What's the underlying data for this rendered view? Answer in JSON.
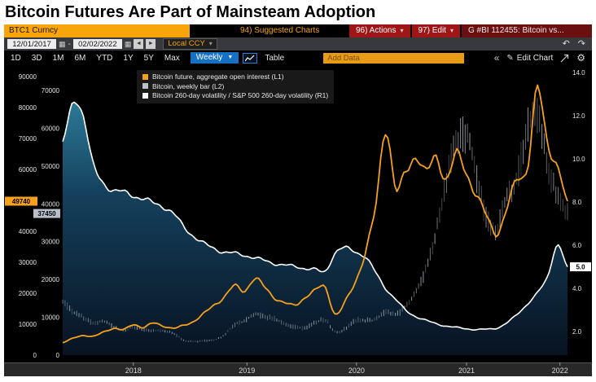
{
  "headline": "Bitcoin Futures Are Part of Mainsteam Adoption",
  "titlebar": {
    "ticker": "BTC1 Curncy",
    "suggested_charts": "94) Suggested Charts",
    "actions": "96) Actions",
    "edit": "97) Edit",
    "chart_title": "G #BI 112455: Bitcoin vs..."
  },
  "toolbar_dates": {
    "start_date": "12/01/2017",
    "end_date": "02/02/2022",
    "separator": "-",
    "currency_mode": "Local CCY"
  },
  "toolbar_chart": {
    "periods": [
      "1D",
      "3D",
      "1M",
      "6M",
      "YTD",
      "1Y",
      "5Y",
      "Max"
    ],
    "frequency": "Weekly",
    "table": "Table",
    "add_data_placeholder": "Add Data",
    "edit_chart": "Edit Chart"
  },
  "icons": {
    "caret_down": "▾",
    "dropdown_down": "▼",
    "calendar": "▦",
    "prev": "◄",
    "next": "►",
    "undo": "↶",
    "redo": "↷",
    "collapse": "«",
    "pencil": "✎",
    "gear": "⚙"
  },
  "chart_data": {
    "type": "line",
    "title": "BTC1 Curncy chart",
    "x_start": "2017-12",
    "x_end": "2022-02",
    "x_resolution_of_values": "monthly",
    "x_axis_labels": [
      "2018",
      "2019",
      "2020",
      "2021",
      "2022"
    ],
    "legend_position": "top-left",
    "grid": false,
    "axes": {
      "L1": {
        "side": "left-outer",
        "ticks": [
          0,
          10000,
          20000,
          30000,
          40000,
          50000,
          60000,
          70000,
          80000,
          90000
        ],
        "bottom": 0,
        "top": 91600
      },
      "L2": {
        "side": "left-inner",
        "ticks": [
          0,
          10000,
          20000,
          30000,
          40000,
          50000,
          60000,
          70000
        ],
        "bottom": 0,
        "top": 74950
      },
      "R1": {
        "side": "right",
        "ticks": [
          2,
          4,
          6,
          8,
          10,
          12,
          14
        ],
        "bottom": 0.91,
        "top": 14.04,
        "decimals": true
      }
    },
    "series": [
      {
        "name": "Bitcoin future, aggregate open interest (L1)",
        "axis": "L1",
        "style": "line",
        "color": "#f5a11d",
        "last_label": "49740",
        "values": [
          4000,
          5500,
          6500,
          6000,
          7500,
          8500,
          8000,
          10000,
          9000,
          10500,
          9500,
          8500,
          9500,
          11000,
          13500,
          16500,
          19000,
          22000,
          20500,
          24500,
          22000,
          19000,
          17000,
          16000,
          18500,
          20500,
          22000,
          13500,
          17500,
          24000,
          33000,
          47000,
          74000,
          54000,
          60000,
          65000,
          58000,
          63000,
          57000,
          65000,
          60000,
          52000,
          44000,
          39000,
          47000,
          57000,
          62000,
          86000,
          68000,
          61000,
          49740
        ]
      },
      {
        "name": "Bitcoin, weekly bar (L2)",
        "axis": "L2",
        "style": "bars",
        "color": "#b9bfc9",
        "last_label": "37450",
        "values": [
          14000,
          11500,
          10000,
          8500,
          9000,
          7500,
          6500,
          7400,
          6800,
          6500,
          6400,
          5600,
          3900,
          3600,
          3800,
          4000,
          5300,
          8000,
          9000,
          10800,
          10200,
          9600,
          8300,
          7500,
          7200,
          8600,
          9300,
          6200,
          7100,
          9100,
          9200,
          9400,
          11500,
          10800,
          13000,
          17000,
          23000,
          33000,
          46000,
          56000,
          58000,
          47000,
          36000,
          33500,
          42000,
          47000,
          60000,
          64000,
          50000,
          42000,
          37450
        ]
      },
      {
        "name": "Bitcoin 260-day volatility / S&P 500 260-day volatility (R1)",
        "axis": "R1",
        "style": "area-line",
        "color": "#ffffff",
        "fill_top": "#2e82a0",
        "fill_bottom": "#081423",
        "last_label": "5.0",
        "values": [
          10.8,
          12.6,
          12.2,
          9.8,
          8.9,
          8.5,
          8.4,
          8.3,
          8.2,
          8.0,
          7.8,
          7.4,
          6.8,
          6.4,
          6.1,
          5.9,
          5.7,
          5.6,
          5.5,
          5.4,
          5.3,
          5.2,
          5.1,
          5.0,
          4.9,
          4.85,
          4.8,
          5.7,
          5.9,
          5.7,
          5.4,
          4.7,
          4.0,
          3.5,
          3.0,
          2.7,
          2.5,
          2.35,
          2.25,
          2.2,
          2.15,
          2.1,
          2.1,
          2.15,
          2.4,
          2.8,
          3.3,
          3.8,
          4.5,
          6.0,
          5.0
        ]
      }
    ]
  }
}
